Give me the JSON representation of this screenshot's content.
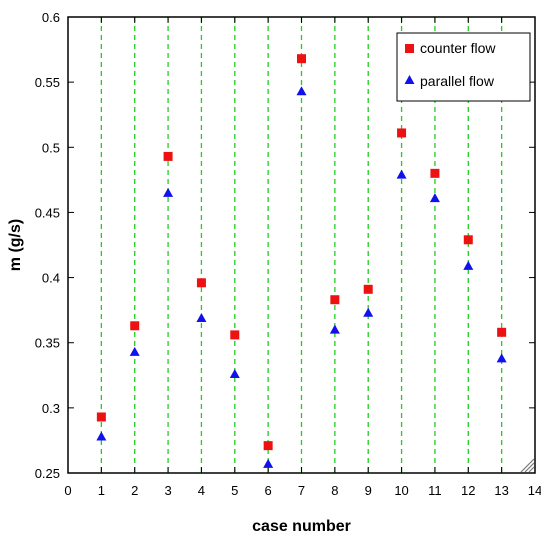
{
  "chart_data": {
    "type": "scatter",
    "xlabel": "case number",
    "ylabel": "m (g/s)",
    "xlim": [
      0,
      14
    ],
    "ylim": [
      0.25,
      0.6
    ],
    "x_ticks": [
      0,
      1,
      2,
      3,
      4,
      5,
      6,
      7,
      8,
      9,
      10,
      11,
      12,
      13,
      14
    ],
    "x_tick_labels": [
      "0",
      "1",
      "2",
      "3",
      "4",
      "5",
      "6",
      "7",
      "8",
      "9",
      "10",
      "11",
      "12",
      "13",
      "14"
    ],
    "y_ticks": [
      0.25,
      0.3,
      0.35,
      0.4,
      0.45,
      0.5,
      0.55,
      0.6
    ],
    "y_tick_labels": [
      "0.25",
      "0.3",
      "0.35",
      "0.4",
      "0.45",
      "0.5",
      "0.55",
      "0.6"
    ],
    "vertical_gridlines_at": [
      1,
      2,
      3,
      4,
      5,
      6,
      7,
      8,
      9,
      10,
      11,
      12,
      13
    ],
    "gridline_color": "#22cc22",
    "legend_position": "top-right",
    "series": [
      {
        "name": "counter flow",
        "marker": "square",
        "color": "#ee1111",
        "x": [
          1,
          2,
          3,
          4,
          5,
          6,
          7,
          8,
          9,
          10,
          11,
          12,
          13
        ],
        "y": [
          0.293,
          0.363,
          0.493,
          0.396,
          0.356,
          0.271,
          0.568,
          0.383,
          0.391,
          0.511,
          0.48,
          0.429,
          0.358
        ]
      },
      {
        "name": "parallel flow",
        "marker": "triangle",
        "color": "#1111ee",
        "x": [
          1,
          2,
          3,
          4,
          5,
          6,
          7,
          8,
          9,
          10,
          11,
          12,
          13
        ],
        "y": [
          0.278,
          0.343,
          0.465,
          0.369,
          0.326,
          0.257,
          0.543,
          0.36,
          0.373,
          0.479,
          0.461,
          0.409,
          0.338
        ]
      }
    ]
  }
}
